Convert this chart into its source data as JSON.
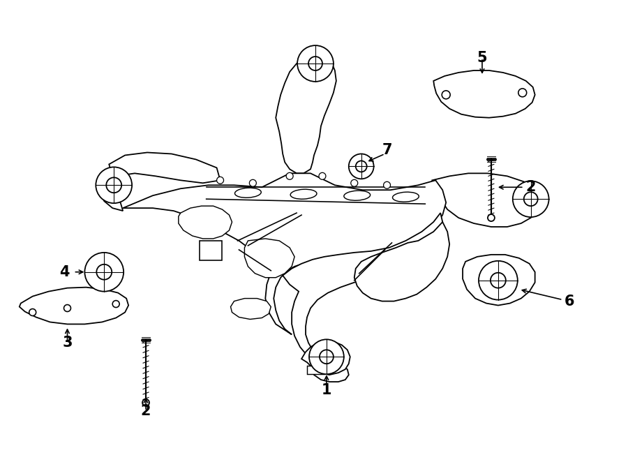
{
  "background_color": "#ffffff",
  "line_color": "#000000",
  "figsize": [
    9.0,
    6.62
  ],
  "dpi": 100,
  "font_size_labels": 15
}
